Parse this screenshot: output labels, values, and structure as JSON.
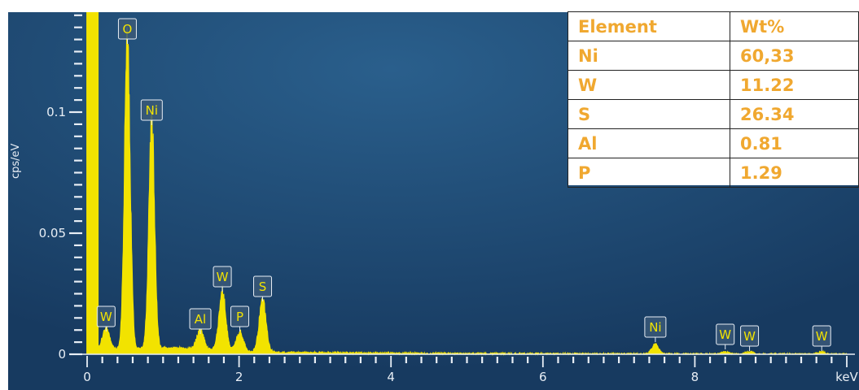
{
  "colors": {
    "background": "#1e4770",
    "trace": "#f2e300",
    "axis": "#e8eef5",
    "table_text": "#f0a830"
  },
  "chart_data": {
    "type": "area",
    "title": "",
    "xlabel": "keV",
    "ylabel": "cps/eV",
    "xlim": [
      -0.1,
      10.05
    ],
    "ylim": [
      0,
      0.141
    ],
    "x_ticks": [
      0,
      2,
      4,
      6,
      8
    ],
    "y_ticks": [
      0,
      0.05,
      0.1
    ],
    "x_tick_labels": [
      "0",
      "2",
      "4",
      "6",
      "8"
    ],
    "y_tick_labels": [
      "0",
      "0.05",
      "0.1"
    ],
    "grid": false,
    "peaks": [
      {
        "label": "W",
        "x": 0.25,
        "y": 0.009
      },
      {
        "label": "O",
        "x": 0.53,
        "y": 0.127
      },
      {
        "label": "Ni",
        "x": 0.85,
        "y": 0.094
      },
      {
        "label": "Al",
        "x": 1.49,
        "y": 0.008
      },
      {
        "label": "W",
        "x": 1.78,
        "y": 0.024
      },
      {
        "label": "P",
        "x": 2.01,
        "y": 0.008
      },
      {
        "label": "S",
        "x": 2.31,
        "y": 0.021
      },
      {
        "label": "Ni",
        "x": 7.48,
        "y": 0.004
      },
      {
        "label": "W",
        "x": 8.4,
        "y": 0.001
      },
      {
        "label": "W",
        "x": 8.72,
        "y": 0.001
      },
      {
        "label": "W",
        "x": 9.67,
        "y": 0.001
      }
    ]
  },
  "table": {
    "headers": [
      "Element",
      "Wt%"
    ],
    "rows": [
      [
        "Ni",
        "60,33"
      ],
      [
        "W",
        "11.22"
      ],
      [
        "S",
        "26.34"
      ],
      [
        "Al",
        "0.81"
      ],
      [
        "P",
        "1.29"
      ]
    ]
  }
}
